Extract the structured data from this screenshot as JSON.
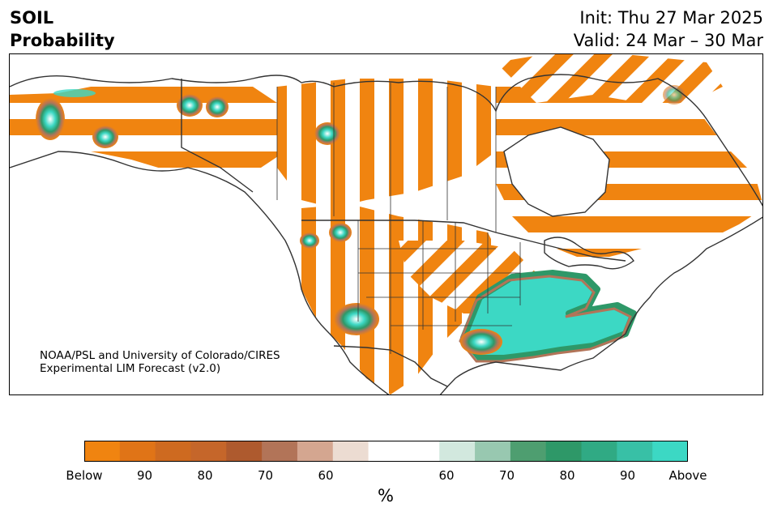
{
  "header": {
    "title_line1": "SOIL",
    "title_line2": "Probability",
    "init_text": "Init: Thu 27 Mar 2025",
    "valid_text": "Valid: 24 Mar – 30 Mar"
  },
  "credit": {
    "line1": "NOAA/PSL and University of Colorado/CIRES",
    "line2": "Experimental LIM Forecast (v2.0)"
  },
  "colorbar": {
    "unit": "%",
    "tick_labels": [
      "Below",
      "90",
      "80",
      "70",
      "60",
      "60",
      "70",
      "80",
      "90",
      "Above"
    ],
    "colors": [
      "#f08410",
      "#e07417",
      "#ce6a20",
      "#c5662a",
      "#ae5a2e",
      "#b27458",
      "#d4a690",
      "#ecdcd2",
      "#ffffff",
      "#ffffff",
      "#d2e8de",
      "#98c8b0",
      "#4e9e70",
      "#2e9868",
      "#30aa84",
      "#38c0a6",
      "#3cd8c4"
    ]
  },
  "legend_colors": {
    "below": "#f08410",
    "mid_brown": "#b27458",
    "above": "#3cd8c4",
    "border": "#333333"
  }
}
